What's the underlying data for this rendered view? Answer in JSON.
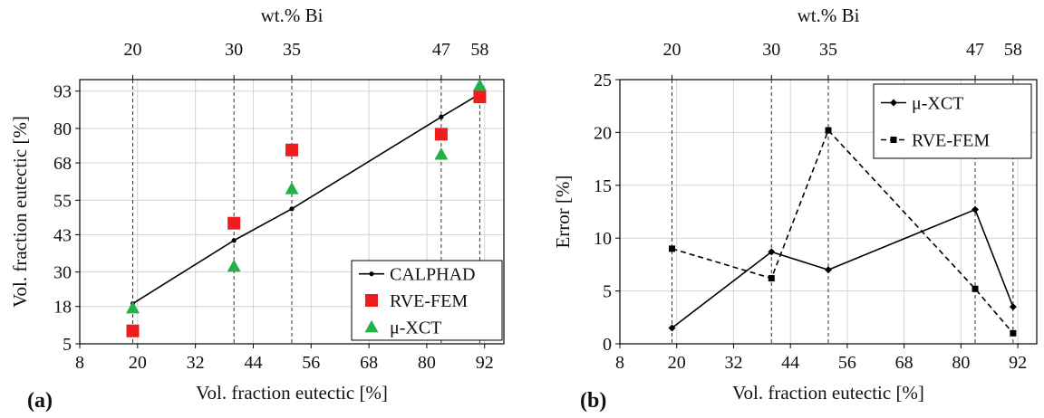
{
  "chart_data": [
    {
      "type": "scatter",
      "panel_label": "(a)",
      "xlabel": "Vol. fraction eutectic [%]",
      "ylabel": "Vol. fraction eutectic [%]",
      "top_axis_label": "wt.% Bi",
      "xlim": [
        8,
        96
      ],
      "ylim": [
        5,
        97
      ],
      "x_ticks": [
        8,
        20,
        32,
        44,
        56,
        68,
        80,
        92
      ],
      "y_ticks": [
        5,
        18,
        30,
        43,
        55,
        68,
        80,
        93
      ],
      "top_ticks": [
        {
          "x": 19,
          "label": "20"
        },
        {
          "x": 40,
          "label": "30"
        },
        {
          "x": 52,
          "label": "35"
        },
        {
          "x": 83,
          "label": "47"
        },
        {
          "x": 91,
          "label": "58"
        }
      ],
      "grid": true,
      "legend_position": "bottom-right",
      "series": [
        {
          "name": "CALPHAD",
          "style": "line-dot",
          "color": "#000000",
          "points": [
            [
              19,
              19
            ],
            [
              40,
              41
            ],
            [
              52,
              52
            ],
            [
              83,
              84
            ],
            [
              91,
              92
            ]
          ]
        },
        {
          "name": "RVE-FEM",
          "style": "square",
          "color": "#ee1c1c",
          "points": [
            [
              19,
              9.5
            ],
            [
              40,
              47
            ],
            [
              52,
              72.5
            ],
            [
              83,
              78
            ],
            [
              91,
              91
            ]
          ]
        },
        {
          "name": "μ-XCT",
          "style": "triangle",
          "color": "#21b14a",
          "points": [
            [
              19,
              17.5
            ],
            [
              40,
              32
            ],
            [
              52,
              59
            ],
            [
              83,
              71
            ],
            [
              91,
              95
            ]
          ]
        }
      ]
    },
    {
      "type": "line",
      "panel_label": "(b)",
      "xlabel": "Vol. fraction eutectic [%]",
      "ylabel": "Error [%]",
      "top_axis_label": "wt.% Bi",
      "xlim": [
        8,
        96
      ],
      "ylim": [
        0,
        25
      ],
      "x_ticks": [
        8,
        20,
        32,
        44,
        56,
        68,
        80,
        92
      ],
      "y_ticks": [
        0,
        5,
        10,
        15,
        20,
        25
      ],
      "top_ticks": [
        {
          "x": 19,
          "label": "20"
        },
        {
          "x": 40,
          "label": "30"
        },
        {
          "x": 52,
          "label": "35"
        },
        {
          "x": 83,
          "label": "47"
        },
        {
          "x": 91,
          "label": "58"
        }
      ],
      "grid": true,
      "legend_position": "top-right",
      "series": [
        {
          "name": "μ-XCT",
          "style": "solid-diamond",
          "color": "#000000",
          "points": [
            [
              19,
              1.5
            ],
            [
              40,
              8.7
            ],
            [
              52,
              7.0
            ],
            [
              83,
              12.7
            ],
            [
              91,
              3.5
            ]
          ]
        },
        {
          "name": "RVE-FEM",
          "style": "dashed-square",
          "color": "#000000",
          "points": [
            [
              19,
              9.0
            ],
            [
              40,
              6.2
            ],
            [
              52,
              20.2
            ],
            [
              83,
              5.2
            ],
            [
              91,
              1.0
            ]
          ]
        }
      ]
    }
  ]
}
